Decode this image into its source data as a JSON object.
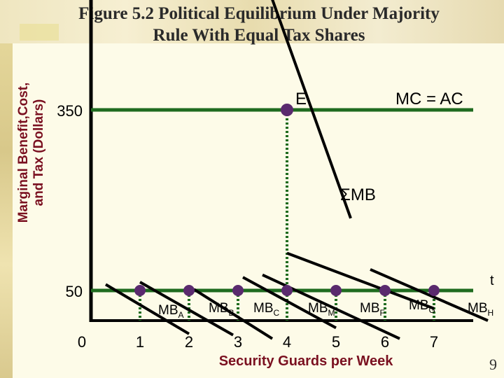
{
  "title_line1": "Figure 5.2 Political Equilibrium Under Majority",
  "title_line2": "Rule With Equal Tax Shares",
  "ylabel_line1": "Marginal Benefit,Cost,",
  "ylabel_line2": "and Tax (Dollars)",
  "page_number": "9",
  "colors": {
    "grid_line": "#1f6b1f",
    "point": "#5a2a6e",
    "dotted": "#1f6b1f",
    "curve": "#000000",
    "ylabel": "#7a1020"
  },
  "chart_data": {
    "type": "line",
    "title": "Figure 5.2 Political Equilibrium Under Majority Rule With Equal Tax Shares",
    "xlabel": "Security Guards per Week",
    "ylabel": "Marginal Benefit,Cost, and Tax (Dollars)",
    "x_ticks": [
      "0",
      "1",
      "2",
      "3",
      "4",
      "5",
      "6",
      "7"
    ],
    "y_ticks": [
      "50",
      "350"
    ],
    "lines": [
      {
        "name": "MC = AC",
        "kind": "horizontal",
        "y": 350
      },
      {
        "name": "t",
        "kind": "horizontal",
        "y": 50
      }
    ],
    "sum_curve": {
      "name": "ΣMB",
      "points": [
        [
          3.1,
          670
        ],
        [
          5.3,
          170
        ]
      ]
    },
    "mb_curves": [
      {
        "label": "MB",
        "sub": "A",
        "points": [
          [
            0.3,
            60
          ],
          [
            2.0,
            -22
          ]
        ]
      },
      {
        "label": "MB",
        "sub": "B",
        "points": [
          [
            1.0,
            64
          ],
          [
            2.9,
            -24
          ]
        ]
      },
      {
        "label": "MB",
        "sub": "C",
        "points": [
          [
            2.1,
            52
          ],
          [
            3.7,
            -30
          ]
        ]
      },
      {
        "label": "MB",
        "sub": "M",
        "points": [
          [
            3.1,
            72
          ],
          [
            5.0,
            -12
          ]
        ]
      },
      {
        "label": "MB",
        "sub": "F",
        "points": [
          [
            3.5,
            76
          ],
          [
            6.3,
            -30
          ]
        ]
      },
      {
        "label": "MB",
        "sub": "G",
        "points": [
          [
            4.0,
            112
          ],
          [
            7.0,
            20
          ]
        ]
      },
      {
        "label": "MB",
        "sub": "H",
        "points": [
          [
            5.7,
            85
          ],
          [
            8.1,
            0
          ]
        ]
      }
    ],
    "points_at_t": [
      1,
      2,
      3,
      4,
      5,
      6,
      7
    ],
    "equilibrium": {
      "label": "E",
      "x": 4,
      "y": 350
    },
    "ylim": [
      0,
      700
    ],
    "xlim": [
      0,
      8
    ]
  }
}
